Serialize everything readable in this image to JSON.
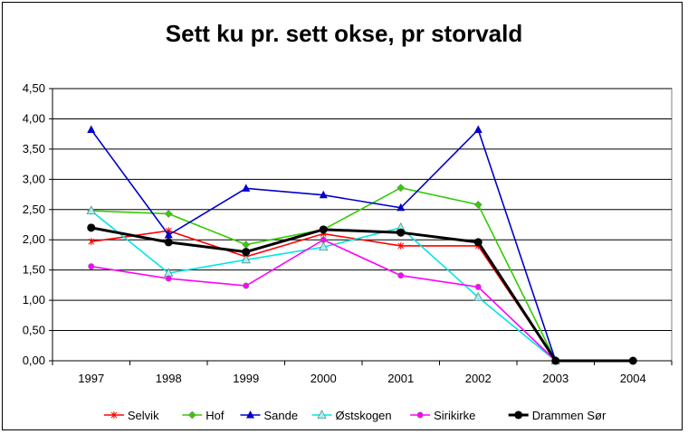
{
  "chart_data": {
    "type": "line",
    "title": "Sett ku pr. sett okse, pr storvald",
    "xlabel": "",
    "ylabel": "",
    "categories": [
      "1997",
      "1998",
      "1999",
      "2000",
      "2001",
      "2002",
      "2003",
      "2004"
    ],
    "ylim": [
      0,
      4.5
    ],
    "yticks": [
      "0,00",
      "0,50",
      "1,00",
      "1,50",
      "2,00",
      "2,50",
      "3,00",
      "3,50",
      "4,00",
      "4,50"
    ],
    "grid": "horizontal",
    "legend": "bottom",
    "series": [
      {
        "name": "Selvik",
        "color": "#ff0000",
        "marker": "star",
        "values": [
          1.97,
          2.15,
          1.72,
          2.1,
          1.9,
          1.9,
          0.0,
          null
        ]
      },
      {
        "name": "Hof",
        "color": "#33cc00",
        "marker": "diamond",
        "values": [
          2.48,
          2.43,
          1.92,
          2.17,
          2.86,
          2.58,
          0.0,
          null
        ]
      },
      {
        "name": "Sande",
        "color": "#0000cc",
        "marker": "triangle",
        "values": [
          3.82,
          2.08,
          2.85,
          2.74,
          2.53,
          3.82,
          0.0,
          null
        ]
      },
      {
        "name": "Østskogen",
        "color": "#00e5e5",
        "marker": "triangle-open",
        "values": [
          2.48,
          1.45,
          1.67,
          1.88,
          2.2,
          1.05,
          0.0,
          null
        ]
      },
      {
        "name": "Sirikirke",
        "color": "#ff00ff",
        "marker": "circle",
        "values": [
          1.56,
          1.36,
          1.24,
          2.0,
          1.41,
          1.22,
          0.0,
          null
        ]
      },
      {
        "name": "Drammen Sør",
        "color": "#000000",
        "marker": "circle-big",
        "values": [
          2.2,
          1.96,
          1.8,
          2.17,
          2.12,
          1.96,
          0.0,
          0.0
        ]
      }
    ]
  }
}
